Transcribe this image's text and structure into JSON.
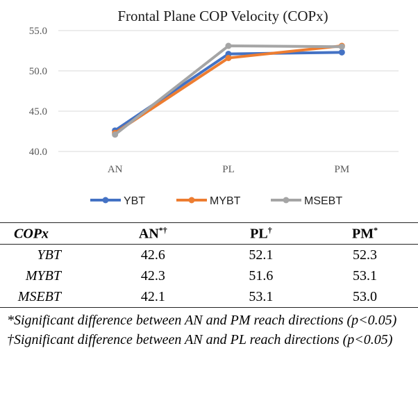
{
  "chart_data": {
    "type": "line",
    "title": "Frontal Plane COP Velocity (COPx)",
    "categories": [
      "AN",
      "PL",
      "PM"
    ],
    "ylim": [
      40.0,
      55.0
    ],
    "yticks": [
      "40.0",
      "45.0",
      "50.0",
      "55.0"
    ],
    "ytick_values": [
      40,
      45,
      50,
      55
    ],
    "grid": true,
    "legend_position": "bottom",
    "series": [
      {
        "name": "YBT",
        "color": "#4472C4",
        "values": [
          42.6,
          52.1,
          52.3
        ]
      },
      {
        "name": "MYBT",
        "color": "#ED7D31",
        "values": [
          42.3,
          51.6,
          53.1
        ]
      },
      {
        "name": "MSEBT",
        "color": "#A5A5A5",
        "values": [
          42.1,
          53.1,
          53.0
        ]
      }
    ]
  },
  "table": {
    "headers": [
      {
        "text": "COPx",
        "sup": ""
      },
      {
        "text": "AN",
        "sup": "*†"
      },
      {
        "text": "PL",
        "sup": "†"
      },
      {
        "text": "PM",
        "sup": "*"
      }
    ],
    "rows": [
      {
        "label": "YBT",
        "cells": [
          "42.6",
          "52.1",
          "52.3"
        ]
      },
      {
        "label": "MYBT",
        "cells": [
          "42.3",
          "51.6",
          "53.1"
        ]
      },
      {
        "label": "MSEBT",
        "cells": [
          "42.1",
          "53.1",
          "53.0"
        ]
      }
    ]
  },
  "notes": [
    "*Significant difference between AN and PM reach directions (p<0.05)",
    "†Significant difference between AN and PL reach directions (p<0.05)"
  ]
}
